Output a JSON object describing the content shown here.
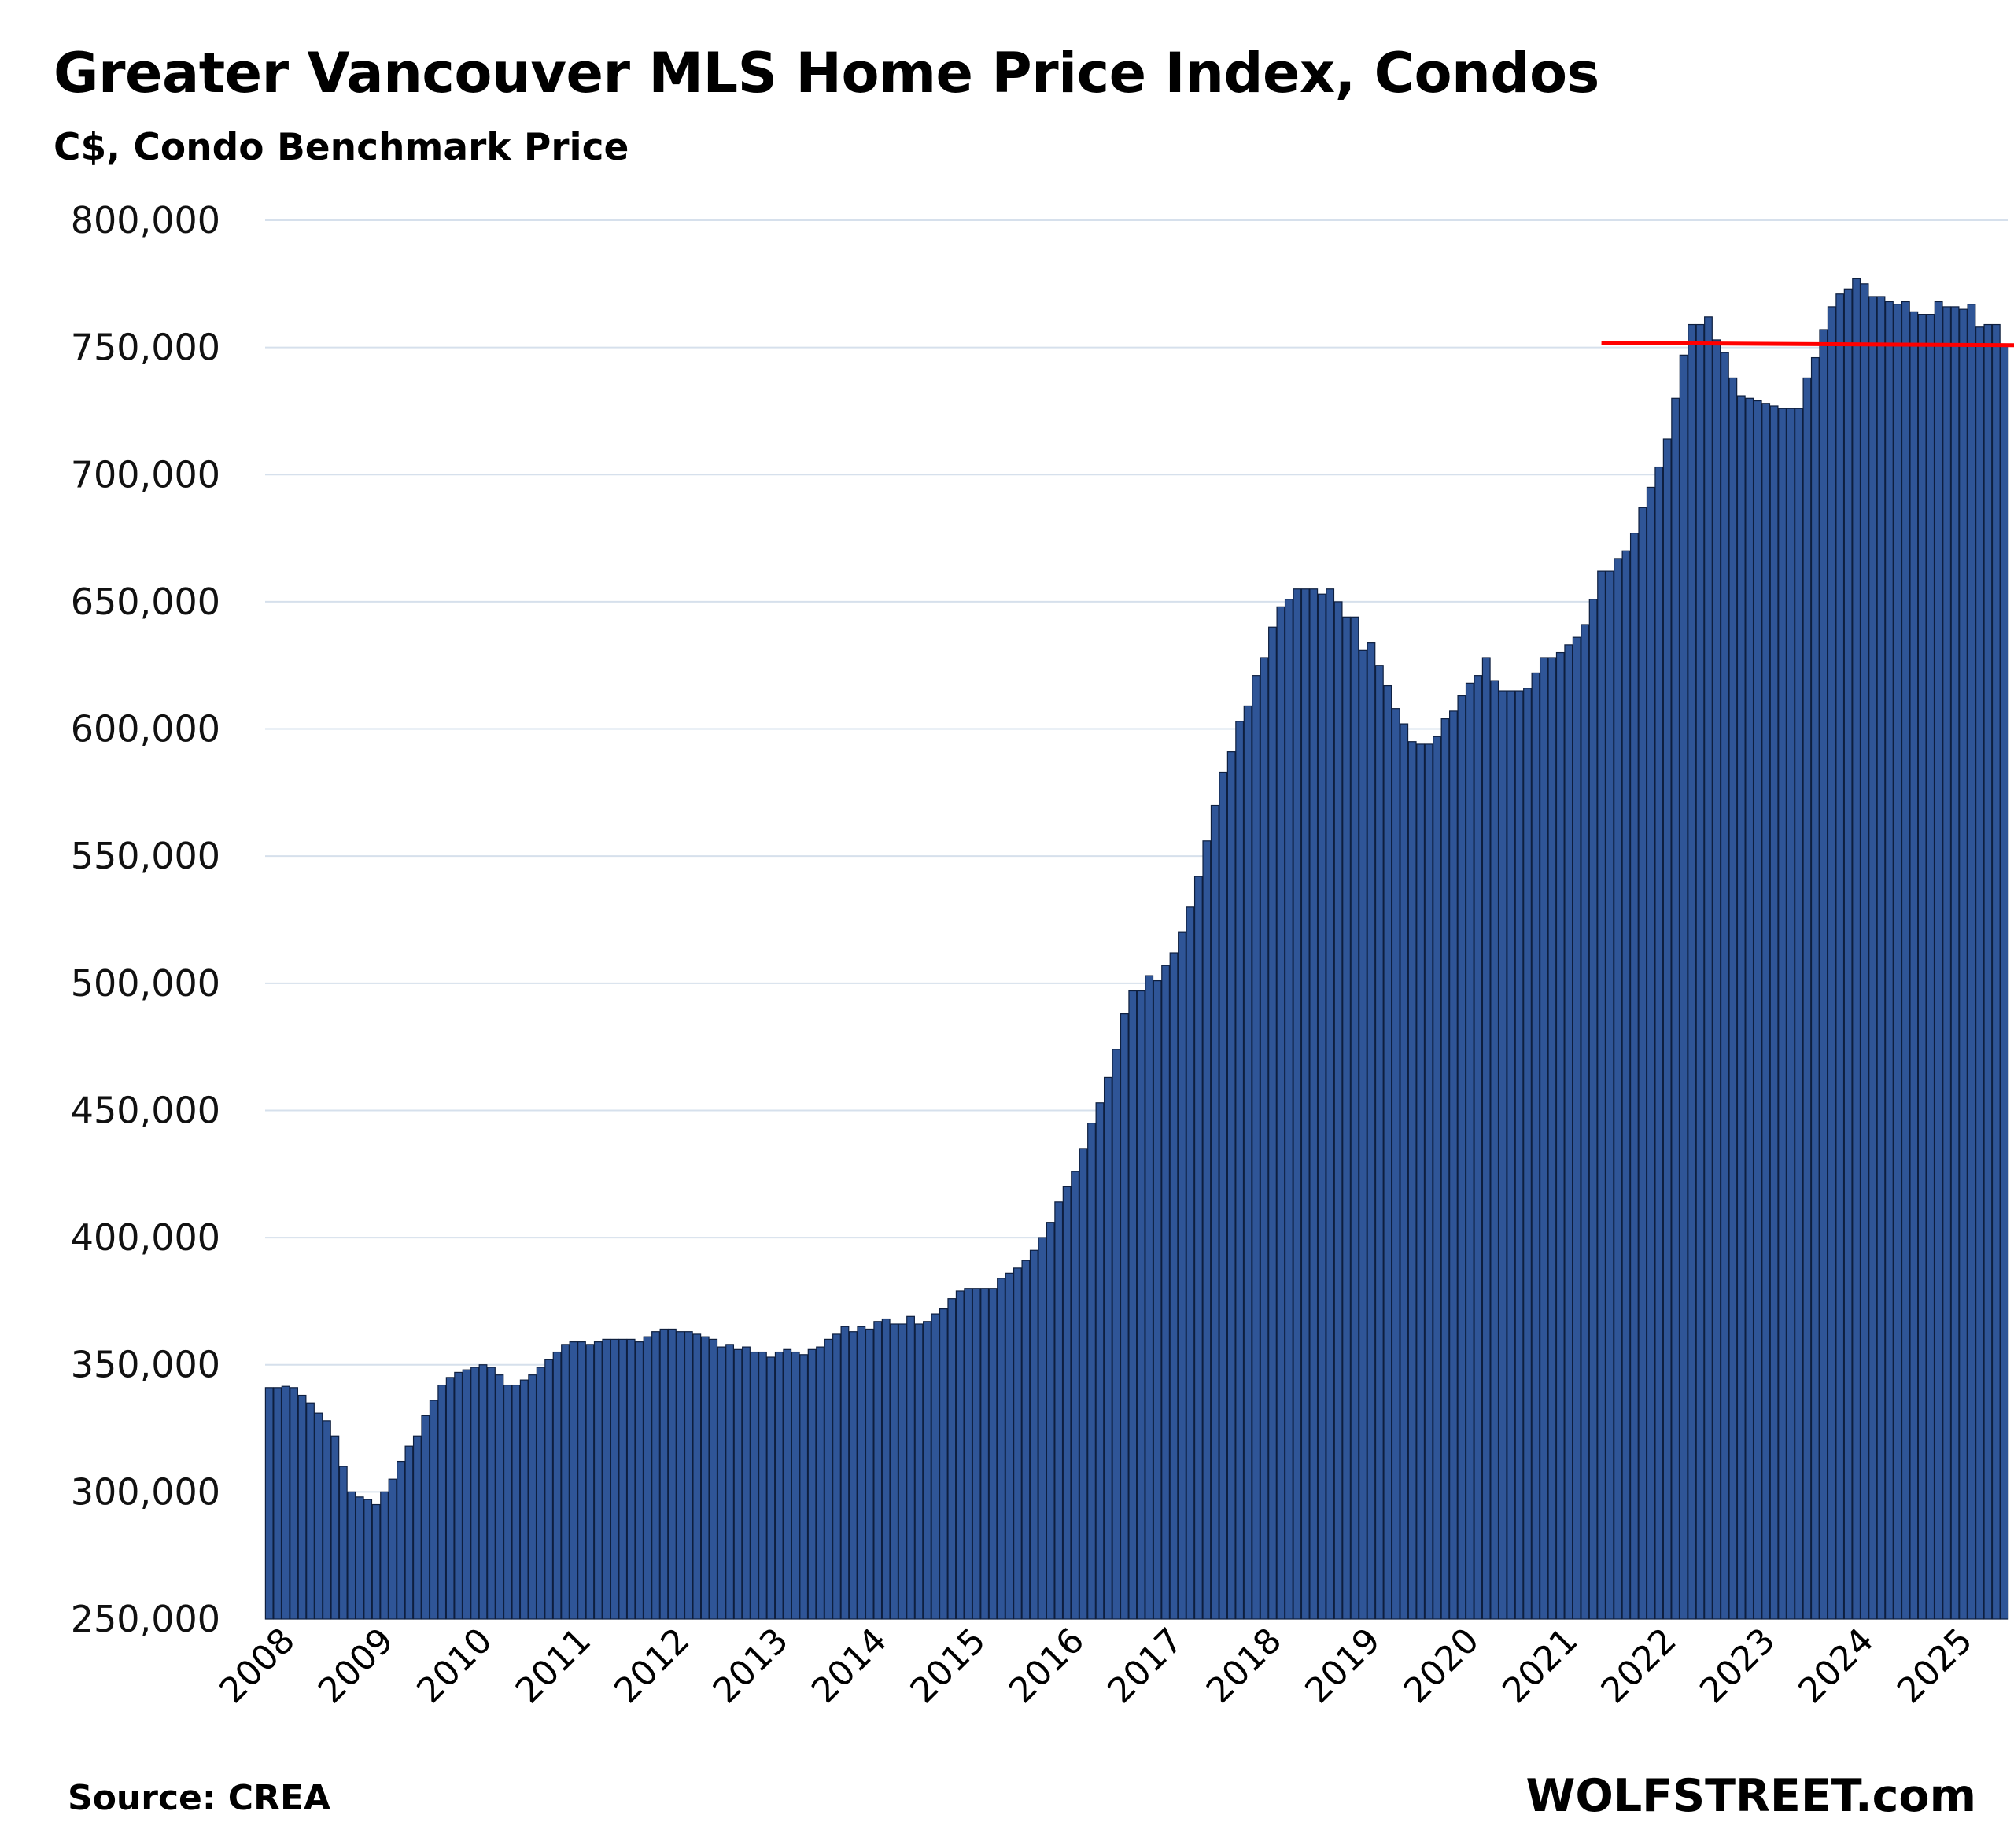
{
  "chart_data": {
    "type": "bar",
    "title": "Greater Vancouver MLS Home Price Index, Condos",
    "subtitle": "C$, Condo Benchmark Price",
    "xlabel": "",
    "ylabel": "",
    "ylim": [
      250000,
      800000
    ],
    "yticks": [
      "250,000",
      "300,000",
      "350,000",
      "400,000",
      "450,000",
      "500,000",
      "550,000",
      "600,000",
      "650,000",
      "700,000",
      "750,000",
      "800,000"
    ],
    "xticks": [
      "2008",
      "2009",
      "2010",
      "2011",
      "2012",
      "2013",
      "2014",
      "2015",
      "2016",
      "2017",
      "2018",
      "2019",
      "2020",
      "2021",
      "2022",
      "2023",
      "2024",
      "2025"
    ],
    "grid": true,
    "bar_color": "#2F5597",
    "bar_edge_color": "#0E1F3F",
    "reference_line": {
      "value": 751500,
      "color": "#FF0000",
      "from": "2021-07"
    },
    "series": [
      {
        "start": "2008-01",
        "frequency": "monthly",
        "values": [
          341000,
          341000,
          341500,
          341000,
          338000,
          335000,
          331000,
          328000,
          322000,
          310000,
          300000,
          298000,
          297000,
          295000,
          300000,
          305000,
          312000,
          318000,
          322000,
          330000,
          336000,
          342000,
          345000,
          347000,
          348000,
          349000,
          350000,
          349000,
          346000,
          342000,
          342000,
          344000,
          346000,
          349000,
          352000,
          355000,
          358000,
          359000,
          359000,
          358000,
          359000,
          360000,
          360000,
          360000,
          360000,
          359000,
          361000,
          363000,
          364000,
          364000,
          363000,
          363000,
          362000,
          361000,
          360000,
          357000,
          358000,
          356000,
          357000,
          355000,
          355000,
          353000,
          355000,
          356000,
          355000,
          354000,
          356000,
          357000,
          360000,
          362000,
          365000,
          363000,
          365000,
          364000,
          367000,
          368000,
          366000,
          366000,
          369000,
          366000,
          367000,
          370000,
          372000,
          376000,
          379000,
          380000,
          380000,
          380000,
          380000,
          384000,
          386000,
          388000,
          391000,
          395000,
          400000,
          406000,
          414000,
          420000,
          426000,
          435000,
          445000,
          453000,
          463000,
          474000,
          488000,
          497000,
          497000,
          503000,
          501000,
          507000,
          512000,
          520000,
          530000,
          542000,
          556000,
          570000,
          583000,
          591000,
          603000,
          609000,
          621000,
          628000,
          640000,
          648000,
          651000,
          655000,
          655000,
          655000,
          653000,
          655000,
          650000,
          644000,
          644000,
          631000,
          634000,
          625000,
          617000,
          608000,
          602000,
          595000,
          594000,
          594000,
          597000,
          604000,
          607000,
          613000,
          618000,
          621000,
          628000,
          619000,
          615000,
          615000,
          615000,
          616000,
          622000,
          628000,
          628000,
          630000,
          633000,
          636000,
          641000,
          651000,
          662000,
          662000,
          667000,
          670000,
          677000,
          687000,
          695000,
          703000,
          714000,
          730000,
          747000,
          759000,
          759000,
          762000,
          753000,
          748000,
          738000,
          731000,
          730000,
          729000,
          728000,
          727000,
          726000,
          726000,
          726000,
          738000,
          746000,
          757000,
          766000,
          771000,
          773000,
          777000,
          775000,
          770000,
          770000,
          768000,
          767000,
          768000,
          764000,
          763000,
          763000,
          768000,
          766000,
          766000,
          765000,
          767000,
          758000,
          759000,
          759000,
          751000
        ]
      }
    ]
  },
  "source_note": "Source: CREA",
  "brand": "WOLFSTREET.com"
}
